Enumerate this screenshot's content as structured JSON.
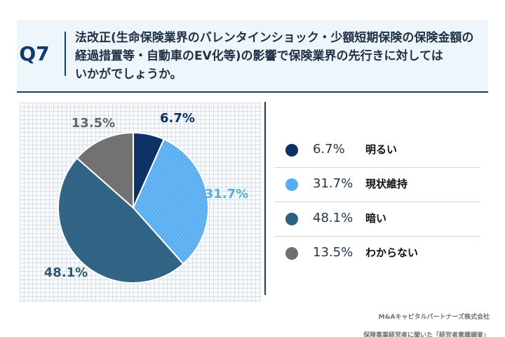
{
  "question": {
    "label": "Q7",
    "text": "法改正(生命保険業界のバレンタインショック・少額短期保険の保険金額の\n経過措置等・自動車のEV化等)の影響で保険業界の先行きに対しては\nいかがでしょうか。"
  },
  "chart_data": {
    "type": "pie",
    "title": "",
    "start_angle": "top",
    "direction": "clockwise",
    "slices": [
      {
        "label": "明るい",
        "value": 6.7,
        "display": "6.7%",
        "color": "#0d3165",
        "label_color": "#0d3165"
      },
      {
        "label": "現状維持",
        "value": 31.7,
        "display": "31.7%",
        "color": "#5aaef0",
        "label_color": "#55aeea"
      },
      {
        "label": "暗い",
        "value": 48.1,
        "display": "48.1%",
        "color": "#2f6282",
        "label_color": "#2f5573"
      },
      {
        "label": "わからない",
        "value": 13.5,
        "display": "13.5%",
        "color": "#707070",
        "label_color": "#666666"
      }
    ],
    "legend": {
      "placement": "right"
    },
    "grid": true
  },
  "source": {
    "line1": "M&Aキャピタルパートナーズ株式会社",
    "line2": "保険事業経営者に聞いた「経営者意識調査」"
  }
}
